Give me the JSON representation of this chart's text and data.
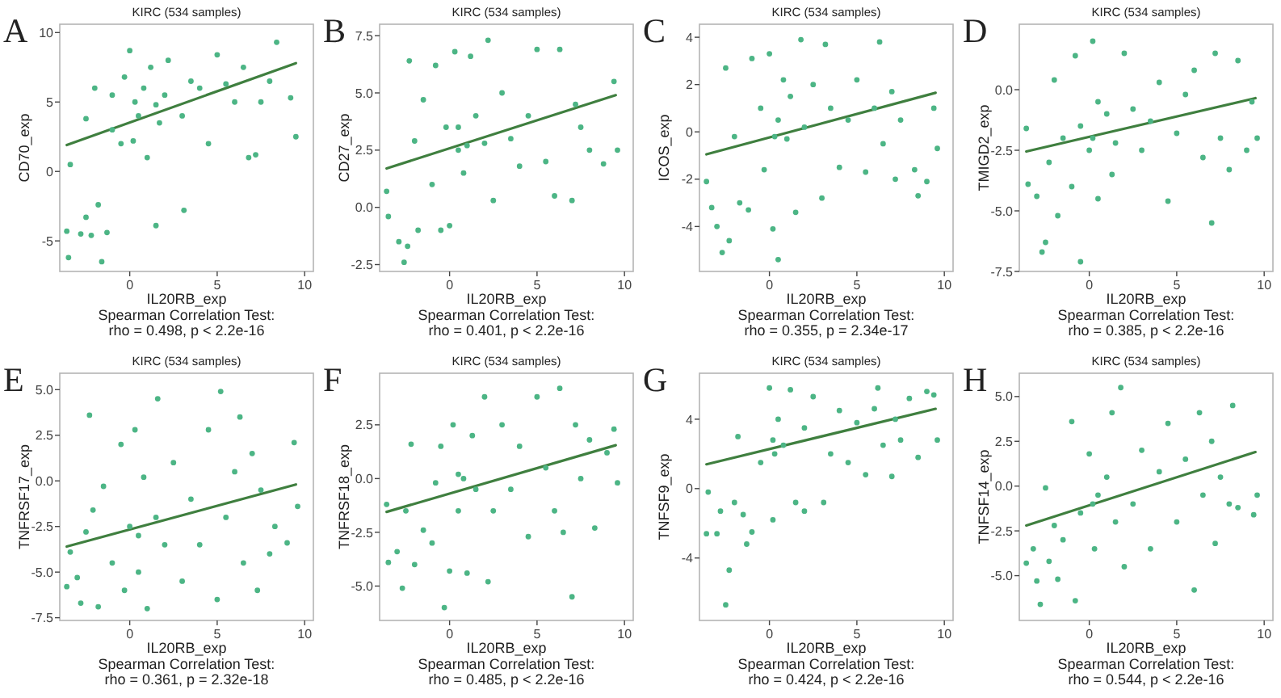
{
  "chart_data": [
    {
      "type": "scatter",
      "title": "KIRC (534 samples)",
      "xlabel": "IL20RB_exp",
      "ylabel": "CD70_exp",
      "xlim": [
        -4.0,
        10.5
      ],
      "xticks": [
        0,
        5,
        10
      ],
      "ylim": [
        -7.2,
        10.6
      ],
      "yticks": [
        -5,
        0,
        5,
        10
      ],
      "marker": "circle",
      "annotations": [
        "A",
        "Spearman Correlation Test:",
        "rho = 0.498, p < 2.2e-16"
      ],
      "series": [
        {
          "type": "scatter",
          "color": "#4cb585",
          "x": [
            -3.6,
            -3.5,
            -3.4,
            -2.8,
            -2.5,
            -2.2,
            -1.8,
            -1.6,
            -1.3,
            -2.0,
            -2.5,
            -1.0,
            -0.5,
            -0.3,
            0,
            0.3,
            0.5,
            0.8,
            1.0,
            1.2,
            1.5,
            1.7,
            2.0,
            2.2,
            3.0,
            3.1,
            3.5,
            4.0,
            4.5,
            5.0,
            5.5,
            6.0,
            6.5,
            6.8,
            7.2,
            7.5,
            8.0,
            8.4,
            9.2,
            9.5,
            0.2,
            -1.0,
            1.5
          ],
          "values": [
            -4.3,
            -6.2,
            0.5,
            -4.5,
            -3.3,
            -4.6,
            -2.4,
            -6.5,
            -4.4,
            6.0,
            3.8,
            3.0,
            2.0,
            6.8,
            8.7,
            5.0,
            4.0,
            6.0,
            1.0,
            7.5,
            -3.9,
            3.5,
            5.5,
            8.0,
            4.0,
            -2.8,
            6.5,
            6.0,
            2.0,
            8.4,
            6.3,
            5.0,
            7.5,
            1.0,
            1.2,
            5.0,
            6.5,
            9.3,
            5.3,
            2.5,
            2.2,
            5.5,
            4.8
          ]
        },
        {
          "type": "line",
          "color": "#3f7f3f",
          "x": [
            -3.6,
            9.5
          ],
          "values": [
            1.9,
            7.8
          ],
          "marker": "none"
        }
      ]
    },
    {
      "type": "scatter",
      "title": "KIRC (534 samples)",
      "xlabel": "IL20RB_exp",
      "ylabel": "CD27_exp",
      "xlim": [
        -4.0,
        10.5
      ],
      "xticks": [
        0,
        5,
        10
      ],
      "ylim": [
        -2.8,
        8.0
      ],
      "yticks": [
        {
          "value": -2.5,
          "label": "-2.5"
        },
        {
          "value": 0,
          "label": "0.0"
        },
        {
          "value": 2.5,
          "label": "2.5"
        },
        {
          "value": 5,
          "label": "5.0"
        },
        {
          "value": 7.5,
          "label": "7.5"
        }
      ],
      "marker": "circle",
      "annotations": [
        "B",
        "Spearman Correlation Test:",
        "rho = 0.401, p < 2.2e-16"
      ],
      "series": [
        {
          "type": "scatter",
          "color": "#4cb585",
          "x": [
            -3.6,
            -3.5,
            -2.9,
            -2.6,
            -2.4,
            -2.3,
            -2.0,
            -1.8,
            -1.5,
            -1.0,
            -0.8,
            -0.5,
            -0.2,
            0,
            0.3,
            0.5,
            0.8,
            1.2,
            1.5,
            2.0,
            2.2,
            2.5,
            3.0,
            3.5,
            4.0,
            4.5,
            5.0,
            5.5,
            6.0,
            6.3,
            7.0,
            7.2,
            7.5,
            8.0,
            8.8,
            9.4,
            9.6,
            0.5,
            1.0
          ],
          "values": [
            0.7,
            -0.4,
            -1.5,
            -2.4,
            -1.7,
            6.4,
            2.9,
            -1.0,
            4.7,
            1.0,
            6.2,
            -1.0,
            3.5,
            -0.8,
            6.8,
            2.5,
            1.5,
            6.6,
            4.0,
            2.8,
            7.3,
            0.3,
            5.0,
            3.0,
            1.8,
            4.0,
            6.9,
            2.0,
            0.5,
            6.9,
            0.3,
            4.5,
            3.5,
            2.5,
            1.9,
            5.5,
            2.5,
            3.5,
            2.7
          ]
        },
        {
          "type": "line",
          "color": "#3f7f3f",
          "x": [
            -3.6,
            9.5
          ],
          "values": [
            1.7,
            4.9
          ],
          "marker": "none"
        }
      ]
    },
    {
      "type": "scatter",
      "title": "KIRC (534 samples)",
      "xlabel": "IL20RB_exp",
      "ylabel": "ICOS_exp",
      "xlim": [
        -4.0,
        10.5
      ],
      "xticks": [
        0,
        5,
        10
      ],
      "ylim": [
        -5.9,
        4.55
      ],
      "yticks": [
        -4,
        -2,
        0,
        2,
        4
      ],
      "marker": "circle",
      "annotations": [
        "C",
        "Spearman Correlation Test:",
        "rho = 0.355, p = 2.34e-17"
      ],
      "series": [
        {
          "type": "scatter",
          "color": "#4cb585",
          "x": [
            -3.6,
            -3.3,
            -3.0,
            -2.7,
            -2.5,
            -2.3,
            -2.0,
            -1.7,
            -1.2,
            -1.0,
            -0.5,
            -0.3,
            0,
            0.2,
            0.5,
            0.5,
            0.8,
            1.0,
            1.2,
            1.5,
            1.8,
            2.0,
            2.5,
            3.0,
            3.2,
            3.5,
            4.0,
            4.5,
            5.0,
            5.5,
            6.0,
            6.3,
            6.5,
            7.0,
            7.2,
            7.5,
            8.3,
            8.5,
            9.0,
            9.6,
            9.4,
            0.3
          ],
          "values": [
            -2.1,
            -3.2,
            -4.0,
            -5.1,
            2.7,
            -4.6,
            -0.2,
            -3.0,
            -3.3,
            3.1,
            1.0,
            -1.6,
            3.3,
            -4.1,
            -5.4,
            0.5,
            2.2,
            -0.3,
            1.5,
            -3.4,
            3.9,
            0.2,
            2.0,
            -2.8,
            3.7,
            1.0,
            -1.5,
            0.5,
            2.2,
            -1.7,
            1.0,
            3.8,
            -0.5,
            1.7,
            -2.0,
            0.5,
            -1.6,
            -2.7,
            -2.1,
            -0.7,
            1.0,
            -0.2
          ]
        },
        {
          "type": "line",
          "color": "#3f7f3f",
          "x": [
            -3.6,
            9.5
          ],
          "values": [
            -0.95,
            1.65
          ],
          "marker": "none"
        }
      ]
    },
    {
      "type": "scatter",
      "title": "KIRC (534 samples)",
      "xlabel": "IL20RB_exp",
      "ylabel": "TMIGD2_exp",
      "xlim": [
        -4.0,
        10.5
      ],
      "xticks": [
        0,
        5,
        10
      ],
      "ylim": [
        -7.5,
        2.7
      ],
      "yticks": [
        {
          "value": -7.5,
          "label": "-7.5"
        },
        {
          "value": -5,
          "label": "-5.0"
        },
        {
          "value": -2.5,
          "label": "-2.5"
        },
        {
          "value": 0,
          "label": "0.0"
        }
      ],
      "marker": "circle",
      "annotations": [
        "D",
        "Spearman Correlation Test:",
        "rho = 0.385, p < 2.2e-16"
      ],
      "series": [
        {
          "type": "scatter",
          "color": "#4cb585",
          "x": [
            -3.6,
            -3.5,
            -3.0,
            -2.7,
            -2.5,
            -2.3,
            -2.0,
            -1.8,
            -1.5,
            -1.0,
            -0.8,
            -0.5,
            -0.5,
            0,
            0.2,
            0.5,
            0.5,
            1.0,
            1.3,
            1.5,
            2.0,
            2.5,
            3.0,
            3.5,
            4.0,
            4.5,
            5.0,
            5.5,
            6.0,
            6.5,
            7.0,
            7.2,
            7.5,
            8.0,
            8.5,
            9.0,
            9.3,
            9.6,
            0.2
          ],
          "values": [
            -1.6,
            -3.9,
            -4.4,
            -6.7,
            -6.3,
            -3.0,
            0.4,
            -5.2,
            -2.0,
            -4.0,
            1.4,
            -1.5,
            -7.1,
            -2.5,
            2.0,
            -0.5,
            -4.5,
            -1.0,
            -3.5,
            -2.2,
            1.5,
            -0.8,
            -2.5,
            -1.3,
            0.3,
            -4.6,
            -1.8,
            -0.2,
            0.8,
            -2.8,
            -5.5,
            1.5,
            -2.0,
            -3.3,
            1.2,
            -2.5,
            -0.5,
            -2.0,
            -2.0
          ]
        },
        {
          "type": "line",
          "color": "#3f7f3f",
          "x": [
            -3.6,
            9.5
          ],
          "values": [
            -2.55,
            -0.35
          ],
          "marker": "none"
        }
      ]
    },
    {
      "type": "scatter",
      "title": "KIRC (534 samples)",
      "xlabel": "IL20RB_exp",
      "ylabel": "TNFRSF17_exp",
      "xlim": [
        -4.0,
        10.5
      ],
      "xticks": [
        0,
        5,
        10
      ],
      "ylim": [
        -7.65,
        5.9
      ],
      "yticks": [
        {
          "value": -7.5,
          "label": "-7.5"
        },
        {
          "value": -5,
          "label": "-5.0"
        },
        {
          "value": -2.5,
          "label": "-2.5"
        },
        {
          "value": 0,
          "label": "0.0"
        },
        {
          "value": 2.5,
          "label": "2.5"
        },
        {
          "value": 5,
          "label": "5.0"
        }
      ],
      "marker": "circle",
      "annotations": [
        "E",
        "Spearman Correlation Test:",
        "rho = 0.361, p = 2.32e-18"
      ],
      "series": [
        {
          "type": "scatter",
          "color": "#4cb585",
          "x": [
            -3.6,
            -3.4,
            -3.0,
            -2.8,
            -2.5,
            -2.3,
            -2.1,
            -1.8,
            -1.5,
            -1.0,
            -0.5,
            -0.3,
            0,
            0.3,
            0.5,
            0.8,
            1.0,
            1.5,
            1.6,
            2.0,
            2.5,
            3.0,
            3.5,
            4.0,
            4.5,
            5.0,
            5.2,
            5.5,
            6.0,
            6.3,
            6.5,
            7.0,
            7.3,
            7.5,
            8.0,
            8.3,
            9.0,
            9.4,
            9.6,
            0.5
          ],
          "values": [
            -5.8,
            -3.9,
            -5.3,
            -6.7,
            -2.8,
            3.6,
            -1.6,
            -6.9,
            -0.3,
            -4.5,
            2.0,
            -6.0,
            -2.5,
            2.8,
            -5.0,
            0.2,
            -7.0,
            -2.0,
            4.5,
            -3.5,
            1.0,
            -5.5,
            -1.0,
            -3.5,
            2.8,
            -6.5,
            4.9,
            -2.0,
            0.5,
            3.5,
            -4.5,
            1.5,
            -6.0,
            -0.5,
            -4.0,
            -2.5,
            -3.4,
            2.1,
            -1.4,
            -3.0
          ]
        },
        {
          "type": "line",
          "color": "#3f7f3f",
          "x": [
            -3.6,
            9.5
          ],
          "values": [
            -3.6,
            -0.2
          ],
          "marker": "none"
        }
      ]
    },
    {
      "type": "scatter",
      "title": "KIRC (534 samples)",
      "xlabel": "IL20RB_exp",
      "ylabel": "TNFRSF18_exp",
      "xlim": [
        -4.0,
        10.5
      ],
      "xticks": [
        0,
        5,
        10
      ],
      "ylim": [
        -6.6,
        4.9
      ],
      "yticks": [
        {
          "value": -5,
          "label": "-5.0"
        },
        {
          "value": -2.5,
          "label": "-2.5"
        },
        {
          "value": 0,
          "label": "0.0"
        },
        {
          "value": 2.5,
          "label": "2.5"
        }
      ],
      "marker": "circle",
      "annotations": [
        "F",
        "Spearman Correlation Test:",
        "rho = 0.485, p < 2.2e-16"
      ],
      "series": [
        {
          "type": "scatter",
          "color": "#4cb585",
          "x": [
            -3.6,
            -3.5,
            -3.0,
            -2.7,
            -2.5,
            -2.2,
            -2.0,
            -1.5,
            -1.0,
            -0.8,
            -0.5,
            -0.3,
            0,
            0.2,
            0.5,
            0.8,
            1.0,
            1.3,
            1.5,
            2.0,
            2.2,
            2.5,
            3.0,
            3.5,
            4.0,
            4.5,
            5.0,
            5.5,
            6.0,
            6.3,
            6.5,
            7.0,
            7.2,
            7.5,
            8.0,
            8.3,
            9.0,
            9.4,
            9.6,
            0.5
          ],
          "values": [
            -1.2,
            -3.9,
            -3.4,
            -5.1,
            -1.5,
            1.6,
            -4.0,
            -2.4,
            -3.0,
            -0.2,
            1.5,
            -6.0,
            -4.3,
            2.5,
            -1.5,
            0.0,
            -4.4,
            2.0,
            -0.5,
            3.8,
            -4.8,
            -1.5,
            2.5,
            -0.5,
            1.5,
            -2.7,
            3.8,
            0.5,
            -1.5,
            4.2,
            -2.5,
            -5.5,
            2.5,
            0.0,
            1.8,
            -2.3,
            1.2,
            2.3,
            -0.2,
            0.2
          ]
        },
        {
          "type": "line",
          "color": "#3f7f3f",
          "x": [
            -3.6,
            9.5
          ],
          "values": [
            -1.55,
            1.55
          ],
          "marker": "none"
        }
      ]
    },
    {
      "type": "scatter",
      "title": "KIRC (534 samples)",
      "xlabel": "IL20RB_exp",
      "ylabel": "TNFSF9_exp",
      "xlim": [
        -4.0,
        10.5
      ],
      "xticks": [
        0,
        5,
        10
      ],
      "ylim": [
        -7.6,
        6.65
      ],
      "yticks": [
        -4,
        0,
        4
      ],
      "marker": "circle",
      "annotations": [
        "G",
        "Spearman Correlation Test:",
        "rho = 0.424, p < 2.2e-16"
      ],
      "series": [
        {
          "type": "scatter",
          "color": "#4cb585",
          "x": [
            -3.6,
            -3.5,
            -3.0,
            -2.8,
            -2.5,
            -2.3,
            -2.0,
            -1.8,
            -1.5,
            -1.3,
            -1.0,
            -0.5,
            0,
            0.2,
            0.3,
            0.5,
            0.8,
            1.2,
            1.5,
            2.0,
            2.0,
            2.5,
            3.1,
            3.5,
            4.0,
            4.5,
            5.0,
            5.5,
            6.0,
            6.2,
            6.5,
            7.0,
            7.2,
            7.5,
            8.0,
            8.5,
            9.0,
            9.4,
            9.6,
            0.2
          ],
          "values": [
            -2.6,
            -0.2,
            -2.6,
            -1.3,
            -6.7,
            -4.7,
            -0.8,
            3.0,
            -1.5,
            -3.2,
            -2.5,
            1.5,
            5.8,
            -1.8,
            2.0,
            4.0,
            2.5,
            5.7,
            -0.8,
            -1.3,
            3.5,
            5.3,
            -0.8,
            2.0,
            4.5,
            1.5,
            3.8,
            0.8,
            4.6,
            5.8,
            2.5,
            0.7,
            4.0,
            2.8,
            5.2,
            1.8,
            5.6,
            5.4,
            2.8,
            2.8
          ]
        },
        {
          "type": "line",
          "color": "#3f7f3f",
          "x": [
            -3.6,
            9.5
          ],
          "values": [
            1.4,
            4.6
          ],
          "marker": "none"
        }
      ]
    },
    {
      "type": "scatter",
      "title": "KIRC (534 samples)",
      "xlabel": "IL20RB_exp",
      "ylabel": "TNFSF14_exp",
      "xlim": [
        -4.0,
        10.5
      ],
      "xticks": [
        0,
        5,
        10
      ],
      "ylim": [
        -7.5,
        6.3
      ],
      "yticks": [
        {
          "value": -5,
          "label": "-5.0"
        },
        {
          "value": -2.5,
          "label": "-2.5"
        },
        {
          "value": 0,
          "label": "0.0"
        },
        {
          "value": 2.5,
          "label": "2.5"
        },
        {
          "value": 5,
          "label": "5.0"
        }
      ],
      "marker": "circle",
      "annotations": [
        "H",
        "Spearman Correlation Test:",
        "rho = 0.544, p < 2.2e-16"
      ],
      "series": [
        {
          "type": "scatter",
          "color": "#4cb585",
          "x": [
            -3.6,
            -3.2,
            -3.0,
            -2.8,
            -2.5,
            -2.3,
            -2.0,
            -1.8,
            -1.5,
            -1.0,
            -0.8,
            -0.5,
            0,
            0.3,
            0.5,
            1.0,
            1.3,
            1.5,
            1.8,
            2.0,
            2.5,
            3.0,
            3.5,
            4.0,
            4.5,
            5.0,
            5.5,
            6.0,
            6.3,
            6.5,
            7.0,
            7.2,
            7.5,
            8.0,
            8.2,
            8.5,
            9.4,
            9.6,
            0.2
          ],
          "values": [
            -4.3,
            -3.5,
            -5.3,
            -6.6,
            -0.1,
            -4.2,
            -2.2,
            -5.2,
            -3.0,
            3.6,
            -6.4,
            -1.5,
            1.8,
            -3.5,
            -0.5,
            0.5,
            4.1,
            -2.0,
            5.5,
            -4.5,
            -1.0,
            2.0,
            -3.5,
            0.8,
            3.5,
            -2.0,
            1.5,
            -5.8,
            4.1,
            -0.5,
            2.5,
            -3.2,
            0.5,
            -1.0,
            4.5,
            -1.2,
            -1.6,
            -0.5,
            -1.0
          ]
        },
        {
          "type": "line",
          "color": "#3f7f3f",
          "x": [
            -3.6,
            9.5
          ],
          "values": [
            -2.2,
            1.9
          ],
          "marker": "none"
        }
      ]
    }
  ]
}
